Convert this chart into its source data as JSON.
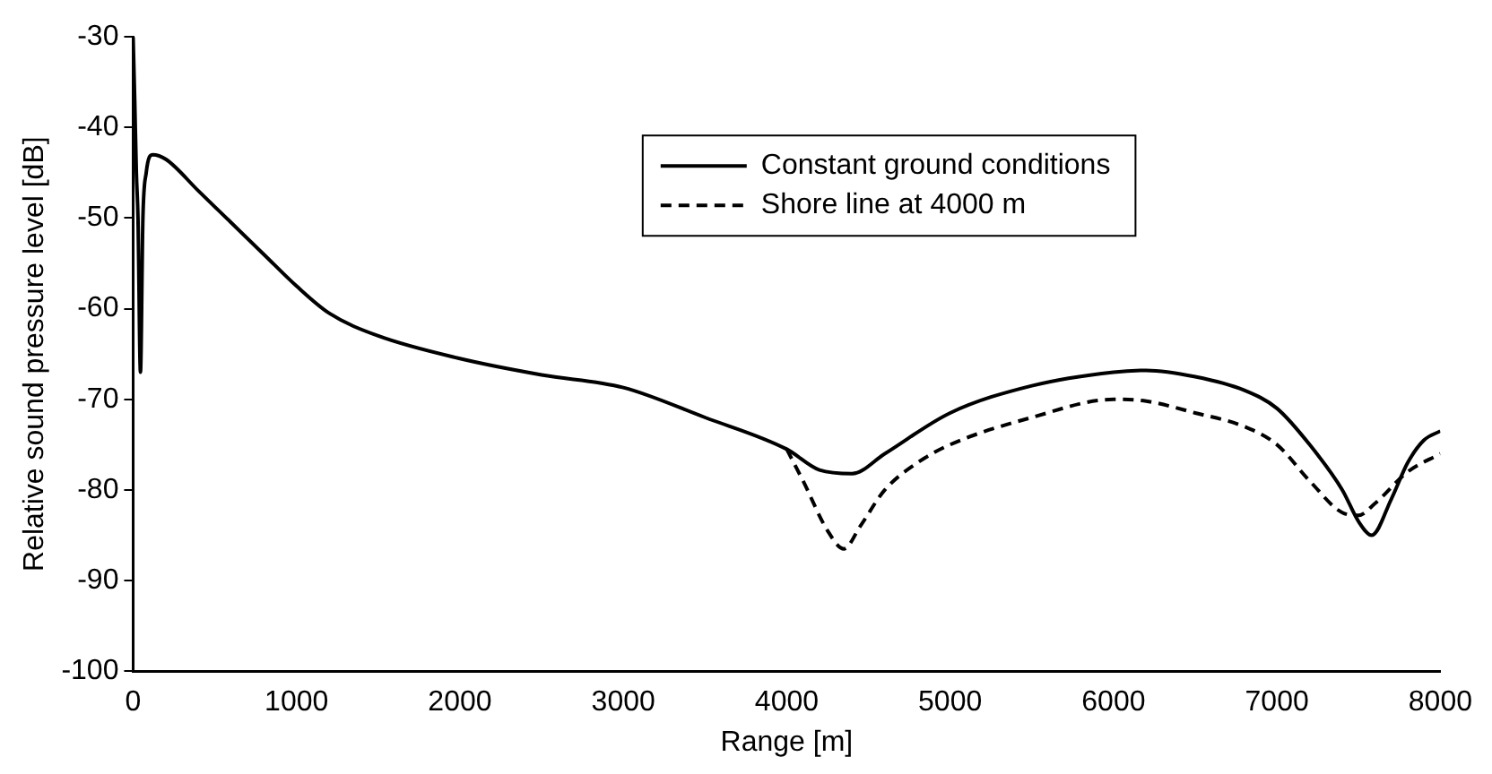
{
  "chart_data": {
    "type": "line",
    "xlabel": "Range [m]",
    "ylabel": "Relative sound pressure level [dB]",
    "xlim": [
      0,
      8000
    ],
    "xticks": [
      0,
      1000,
      2000,
      3000,
      4000,
      5000,
      6000,
      7000,
      8000
    ],
    "ylim": [
      -100,
      -30
    ],
    "yticks": [
      -100,
      -90,
      -80,
      -70,
      -60,
      -50,
      -40,
      -30
    ],
    "grid": false,
    "legend": "top right",
    "marker": "none",
    "series": [
      {
        "name": "Constant ground conditions",
        "color": "#000000",
        "line_style": "solid",
        "x": [
          0,
          10,
          20,
          30,
          45,
          60,
          80,
          120,
          200,
          400,
          600,
          800,
          1000,
          1200,
          1500,
          2000,
          2500,
          3000,
          3500,
          4000,
          4200,
          4400,
          4600,
          5000,
          5500,
          6000,
          6200,
          6500,
          6800,
          7000,
          7200,
          7400,
          7500,
          7580,
          7700,
          7800,
          7900,
          8000
        ],
        "values": [
          -30,
          -37,
          -45,
          -50,
          -67,
          -50,
          -45,
          -43,
          -43.5,
          -47,
          -50.5,
          -54,
          -57.5,
          -60.5,
          -63,
          -65.5,
          -67.3,
          -68.7,
          -72,
          -75.5,
          -77.8,
          -78.2,
          -76,
          -71.5,
          -68.5,
          -67,
          -66.8,
          -67.5,
          -69,
          -71,
          -75,
          -80,
          -83.5,
          -85,
          -81,
          -77,
          -74.5,
          -73.5
        ]
      },
      {
        "name": "Shore line at 4000 m",
        "color": "#000000",
        "line_style": "dashed",
        "x": [
          4000,
          4100,
          4250,
          4350,
          4450,
          4600,
          4800,
          5000,
          5500,
          6000,
          6200,
          6500,
          6800,
          7000,
          7200,
          7400,
          7500,
          7600,
          7800,
          8000
        ],
        "values": [
          -75.5,
          -79,
          -84.5,
          -86.5,
          -84,
          -80,
          -77,
          -75,
          -72,
          -70,
          -70.2,
          -71.5,
          -73,
          -75,
          -79,
          -82.5,
          -82.8,
          -81.5,
          -78,
          -76
        ]
      }
    ]
  }
}
